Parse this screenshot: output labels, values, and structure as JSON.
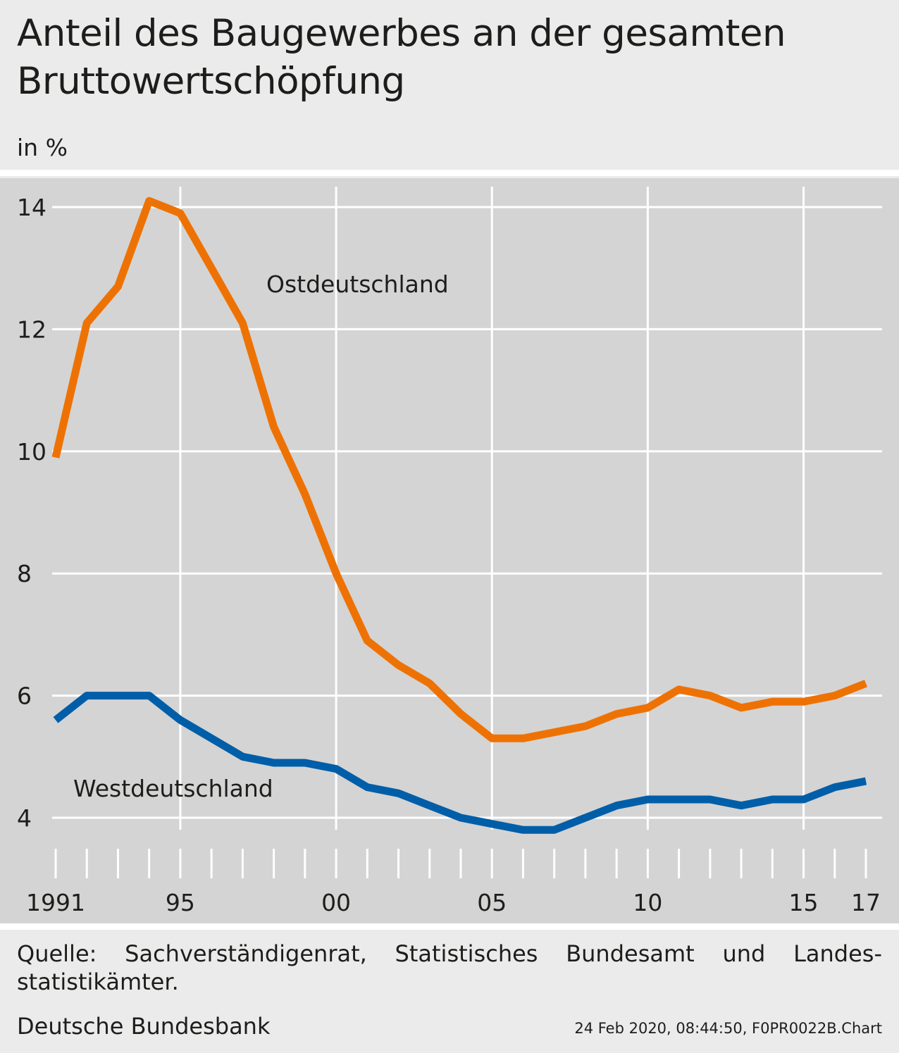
{
  "header": {
    "title": "Anteil des Baugewerbes an der gesamten Bruttowertschöpfung",
    "unit": "in %"
  },
  "footer": {
    "source": "Quelle: Sachverständigenrat, Statistisches Bundesamt und Landes- statistikämter.",
    "publisher": "Deutsche Bundesbank",
    "stamp": "24 Feb 2020, 08:44:50, F0PR0022B.Chart"
  },
  "chart_data": {
    "type": "line",
    "title": "Anteil des Baugewerbes an der gesamten Bruttowertschöpfung",
    "ylabel": "in %",
    "x": [
      1991,
      1992,
      1993,
      1994,
      1995,
      1996,
      1997,
      1998,
      1999,
      2000,
      2001,
      2002,
      2003,
      2004,
      2005,
      2006,
      2007,
      2008,
      2009,
      2010,
      2011,
      2012,
      2013,
      2014,
      2015,
      2016,
      2017
    ],
    "xticks": [
      {
        "year": 1991,
        "label": "1991"
      },
      {
        "year": 1995,
        "label": "95"
      },
      {
        "year": 2000,
        "label": "00"
      },
      {
        "year": 2005,
        "label": "05"
      },
      {
        "year": 2010,
        "label": "10"
      },
      {
        "year": 2015,
        "label": "15"
      },
      {
        "year": 2017,
        "label": "17"
      }
    ],
    "yticks": [
      4,
      6,
      8,
      10,
      12,
      14
    ],
    "ylim": [
      3,
      14.3
    ],
    "xlim": [
      1990.5,
      2017.5
    ],
    "vgrid_years": [
      1995,
      2000,
      2005,
      2010,
      2015
    ],
    "grid": true,
    "series": [
      {
        "name": "Ostdeutschland",
        "color": "#ee7203",
        "values": [
          9.9,
          12.1,
          12.7,
          14.1,
          13.9,
          13.0,
          12.1,
          10.4,
          9.3,
          8.0,
          6.9,
          6.5,
          6.2,
          5.7,
          5.3,
          5.3,
          5.4,
          5.5,
          5.7,
          5.8,
          6.1,
          6.0,
          5.8,
          5.9,
          5.9,
          6.0,
          6.2
        ]
      },
      {
        "name": "Westdeutschland",
        "color": "#005ea8",
        "values": [
          5.6,
          6.0,
          6.0,
          6.0,
          5.6,
          5.3,
          5.0,
          4.9,
          4.9,
          4.8,
          4.5,
          4.4,
          4.2,
          4.0,
          3.9,
          3.8,
          3.8,
          4.0,
          4.2,
          4.3,
          4.3,
          4.3,
          4.2,
          4.3,
          4.3,
          4.5,
          4.6
        ]
      }
    ]
  }
}
